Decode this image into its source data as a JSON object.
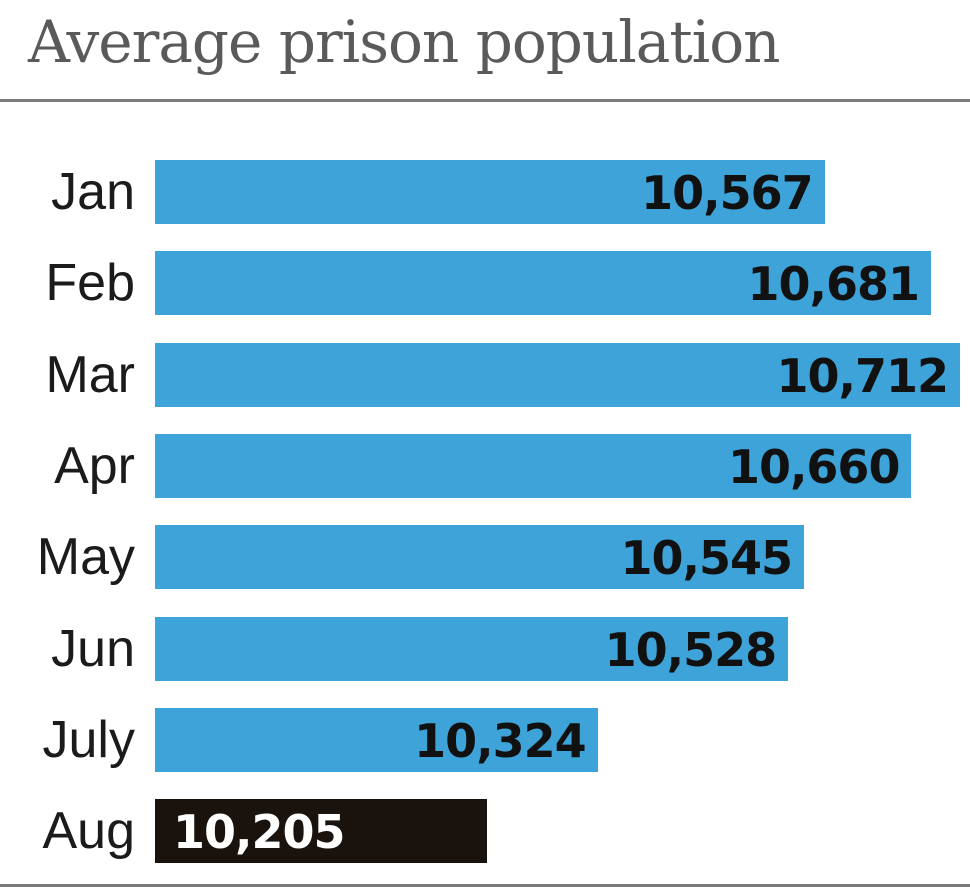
{
  "chart_data": {
    "type": "bar",
    "orientation": "horizontal",
    "title": "Average prison population",
    "categories": [
      "Jan",
      "Feb",
      "Mar",
      "Apr",
      "May",
      "Jun",
      "July",
      "Aug"
    ],
    "values": [
      10567,
      10681,
      10712,
      10660,
      10545,
      10528,
      10324,
      10205
    ],
    "value_labels": [
      "10,567",
      "10,681",
      "10,712",
      "10,660",
      "10,545",
      "10,528",
      "10,324",
      "10,205"
    ],
    "highlight_index": 7,
    "xlim": [
      9850,
      10712
    ],
    "grid": false,
    "legend": "none"
  },
  "colors": {
    "bar": "#3ea3d8",
    "highlight_bar": "#1a120c",
    "value_text": "#111111",
    "highlight_value_text": "#ffffff",
    "title": "#5a5a5a",
    "rule": "#7a7a7a"
  }
}
